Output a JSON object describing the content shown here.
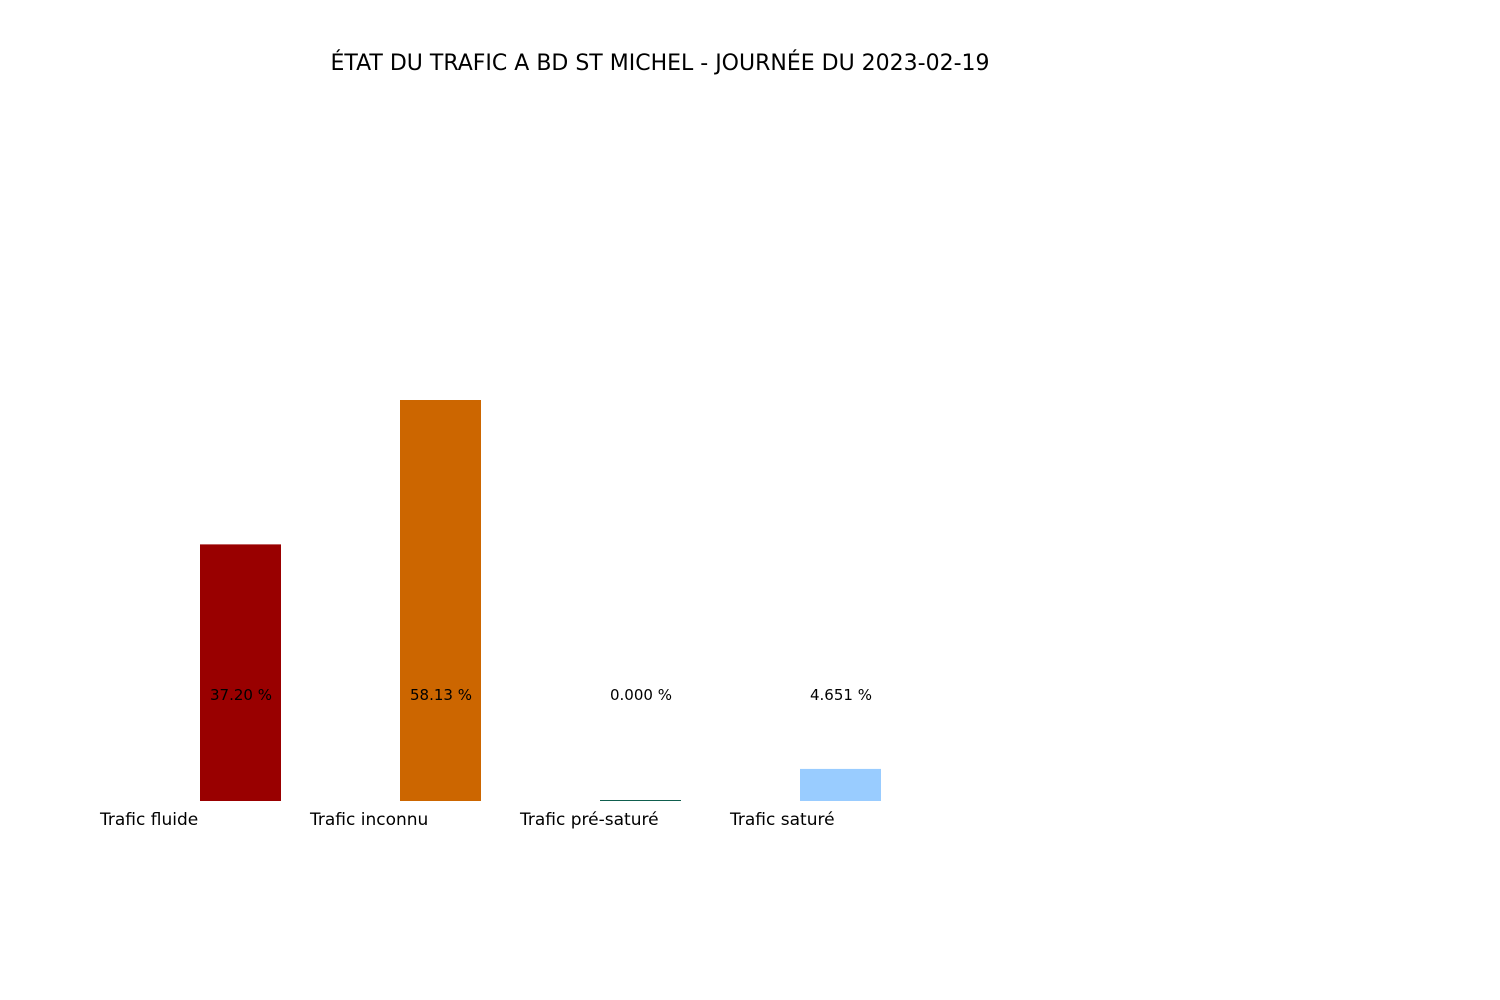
{
  "chart_data": {
    "type": "bar",
    "title": "ÉTAT DU TRAFIC A BD ST MICHEL - JOURNÉE DU 2023-02-19",
    "xlabel": "",
    "ylabel": "",
    "categories": [
      "Trafic fluide",
      "Trafic inconnu",
      "Trafic pré-saturé",
      "Trafic saturé"
    ],
    "values": [
      37.2,
      58.13,
      0.0,
      4.651
    ],
    "value_labels": [
      "37.20 %",
      "58.13 %",
      "0.000 %",
      "4.651 %"
    ],
    "colors": [
      "#990000",
      "#cc6600",
      "#0f5e4e",
      "#99ccff"
    ],
    "ylim": [
      0,
      58.13
    ],
    "axes_visible": false,
    "grid": false,
    "legend": "none"
  }
}
